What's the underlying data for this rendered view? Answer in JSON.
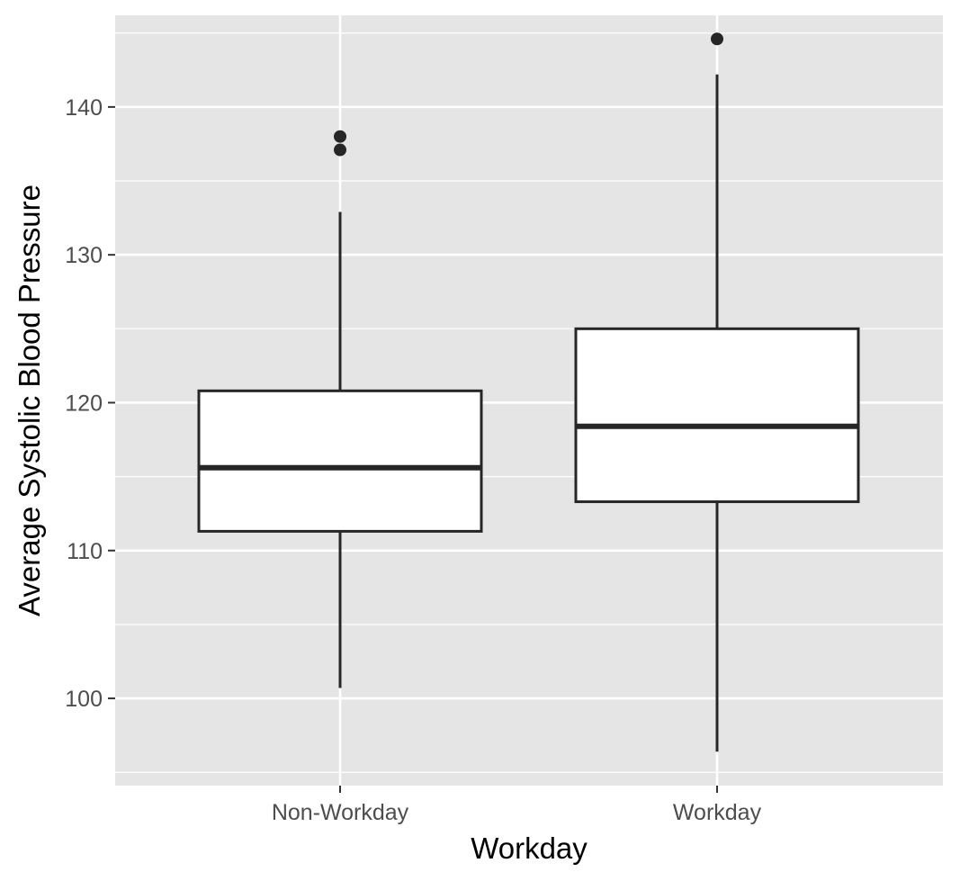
{
  "chart_data": {
    "type": "boxplot",
    "title": "",
    "xlabel": "Workday",
    "ylabel": "Average Systolic Blood Pressure",
    "categories": [
      "Non-Workday",
      "Workday"
    ],
    "boxes": [
      {
        "category": "Non-Workday",
        "whisker_low": 100.7,
        "q1": 111.3,
        "median": 115.6,
        "q3": 120.8,
        "whisker_high": 132.9,
        "outliers": [
          137.1,
          138.0
        ]
      },
      {
        "category": "Workday",
        "whisker_low": 96.4,
        "q1": 113.3,
        "median": 118.4,
        "q3": 125.0,
        "whisker_high": 142.2,
        "outliers": [
          144.6
        ]
      }
    ],
    "y_ticks": [
      100,
      110,
      120,
      130,
      140
    ],
    "y_tick_labels": [
      "100",
      "110",
      "120",
      "130",
      "140"
    ],
    "ylim": [
      94.1,
      146.2
    ],
    "grid": true,
    "colors": {
      "panel": "#e5e5e5",
      "grid": "#ffffff",
      "box_fill": "#ffffff",
      "box_stroke": "#262626",
      "tick_text": "#4d4d4d",
      "axis_title": "#000000"
    }
  }
}
